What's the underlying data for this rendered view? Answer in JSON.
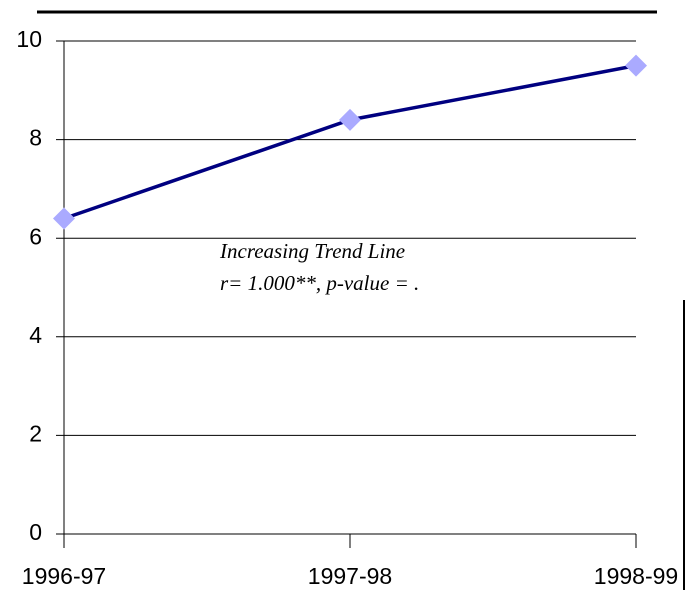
{
  "chart_data": {
    "type": "line",
    "categories": [
      "1996-97",
      "1997-98",
      "1998-99"
    ],
    "series": [
      {
        "color": "#000080",
        "marker_color": "#aaaaff",
        "values": [
          6.4,
          8.4,
          9.5
        ]
      }
    ],
    "ylim": [
      0,
      10
    ],
    "yticks": [
      0,
      2,
      4,
      6,
      8,
      10
    ],
    "grid": true,
    "annotations": [
      "Increasing Trend Line",
      "r= 1.000**, p-value = ."
    ]
  }
}
